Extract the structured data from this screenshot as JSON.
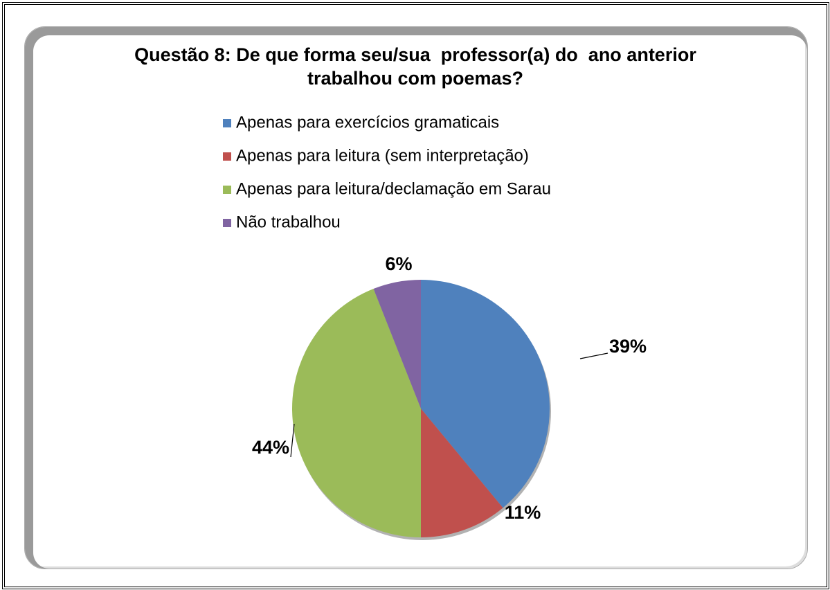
{
  "chart_data": {
    "type": "pie",
    "title": "Questão 8: De que forma seu/sua  professor(a) do  ano anterior  trabalhou com poemas?",
    "categories": [
      "Apenas para exercícios gramaticais",
      "Apenas para leitura (sem interpretação)",
      "Apenas para leitura/declamação em Sarau",
      "Não trabalhou"
    ],
    "values": [
      39,
      11,
      44,
      6
    ],
    "value_labels": [
      "39%",
      "11%",
      "44%",
      "6%"
    ],
    "colors": [
      "#4f81bd",
      "#c0504d",
      "#9bbb59",
      "#8064a2"
    ],
    "legend": "top"
  }
}
